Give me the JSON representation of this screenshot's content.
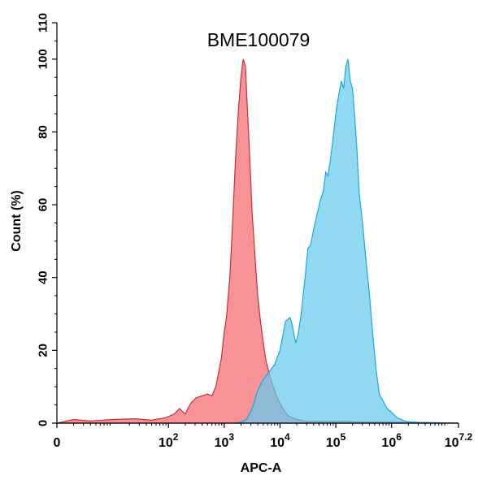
{
  "chart_data": {
    "type": "area",
    "title": "BME100079",
    "xlabel": "APC-A",
    "ylabel": "Count (%)",
    "x_scale": "log",
    "xlim_log10": [
      0,
      7.2
    ],
    "ylim": [
      0,
      110
    ],
    "grid": false,
    "y_ticks": [
      {
        "value": 0,
        "label": "0"
      },
      {
        "value": 20,
        "label": "20"
      },
      {
        "value": 40,
        "label": "40"
      },
      {
        "value": 60,
        "label": "60"
      },
      {
        "value": 80,
        "label": "80"
      },
      {
        "value": 100,
        "label": "100"
      },
      {
        "value": 110,
        "label": "110"
      }
    ],
    "x_ticks": [
      {
        "log10": 0,
        "base": "0",
        "exp": ""
      },
      {
        "log10": 2,
        "base": "10",
        "exp": "2"
      },
      {
        "log10": 3,
        "base": "10",
        "exp": "3"
      },
      {
        "log10": 4,
        "base": "10",
        "exp": "4"
      },
      {
        "log10": 5,
        "base": "10",
        "exp": "5"
      },
      {
        "log10": 6,
        "base": "10",
        "exp": "6"
      },
      {
        "log10": 7.2,
        "base": "10",
        "exp": "7.2"
      }
    ],
    "series": [
      {
        "fill": "#f46a6e",
        "stroke": "#c62f37",
        "points": [
          [
            0.0,
            0
          ],
          [
            0.3,
            1
          ],
          [
            0.6,
            0.6
          ],
          [
            1.0,
            1
          ],
          [
            1.4,
            1.2
          ],
          [
            1.7,
            0.8
          ],
          [
            1.95,
            1.5
          ],
          [
            2.1,
            2.5
          ],
          [
            2.2,
            4
          ],
          [
            2.3,
            2.5
          ],
          [
            2.4,
            5.5
          ],
          [
            2.5,
            7
          ],
          [
            2.6,
            7.5
          ],
          [
            2.7,
            8
          ],
          [
            2.78,
            7.5
          ],
          [
            2.85,
            10
          ],
          [
            2.9,
            14
          ],
          [
            2.95,
            18
          ],
          [
            3.0,
            25
          ],
          [
            3.04,
            29
          ],
          [
            3.1,
            40
          ],
          [
            3.15,
            55
          ],
          [
            3.2,
            72
          ],
          [
            3.25,
            85
          ],
          [
            3.3,
            95
          ],
          [
            3.34,
            100
          ],
          [
            3.38,
            98
          ],
          [
            3.42,
            85
          ],
          [
            3.46,
            72
          ],
          [
            3.5,
            58
          ],
          [
            3.55,
            46
          ],
          [
            3.6,
            35
          ],
          [
            3.65,
            28
          ],
          [
            3.7,
            22
          ],
          [
            3.75,
            17
          ],
          [
            3.8,
            14
          ],
          [
            3.88,
            10
          ],
          [
            3.95,
            7
          ],
          [
            4.05,
            4
          ],
          [
            4.15,
            2
          ],
          [
            4.3,
            1
          ],
          [
            4.5,
            0.5
          ],
          [
            4.8,
            0.5
          ],
          [
            5.2,
            0.5
          ],
          [
            5.5,
            0.3
          ],
          [
            6.0,
            0.3
          ],
          [
            6.5,
            0.2
          ],
          [
            7.2,
            0
          ]
        ]
      },
      {
        "fill": "#66c9ef",
        "stroke": "#1ea9d7",
        "points": [
          [
            3.2,
            0
          ],
          [
            3.3,
            0.3
          ],
          [
            3.4,
            1
          ],
          [
            3.5,
            4
          ],
          [
            3.6,
            9
          ],
          [
            3.7,
            12
          ],
          [
            3.8,
            14
          ],
          [
            3.9,
            16
          ],
          [
            3.95,
            18
          ],
          [
            4.0,
            20
          ],
          [
            4.05,
            24
          ],
          [
            4.1,
            28
          ],
          [
            4.18,
            29
          ],
          [
            4.22,
            27
          ],
          [
            4.28,
            22
          ],
          [
            4.32,
            24
          ],
          [
            4.38,
            30
          ],
          [
            4.45,
            40
          ],
          [
            4.5,
            48
          ],
          [
            4.55,
            49
          ],
          [
            4.6,
            53
          ],
          [
            4.66,
            57
          ],
          [
            4.72,
            61
          ],
          [
            4.78,
            64
          ],
          [
            4.82,
            69
          ],
          [
            4.86,
            68
          ],
          [
            4.9,
            72
          ],
          [
            4.95,
            78
          ],
          [
            5.0,
            85
          ],
          [
            5.05,
            90
          ],
          [
            5.1,
            94
          ],
          [
            5.14,
            92
          ],
          [
            5.18,
            98
          ],
          [
            5.22,
            100
          ],
          [
            5.26,
            94
          ],
          [
            5.3,
            92
          ],
          [
            5.34,
            84
          ],
          [
            5.38,
            75
          ],
          [
            5.42,
            63
          ],
          [
            5.48,
            55
          ],
          [
            5.54,
            45
          ],
          [
            5.6,
            36
          ],
          [
            5.66,
            25
          ],
          [
            5.72,
            15
          ],
          [
            5.78,
            8
          ],
          [
            5.85,
            6
          ],
          [
            5.92,
            4
          ],
          [
            6.0,
            3
          ],
          [
            6.1,
            1.5
          ],
          [
            6.25,
            0.5
          ],
          [
            6.5,
            0.2
          ],
          [
            7.2,
            0
          ]
        ]
      }
    ]
  }
}
